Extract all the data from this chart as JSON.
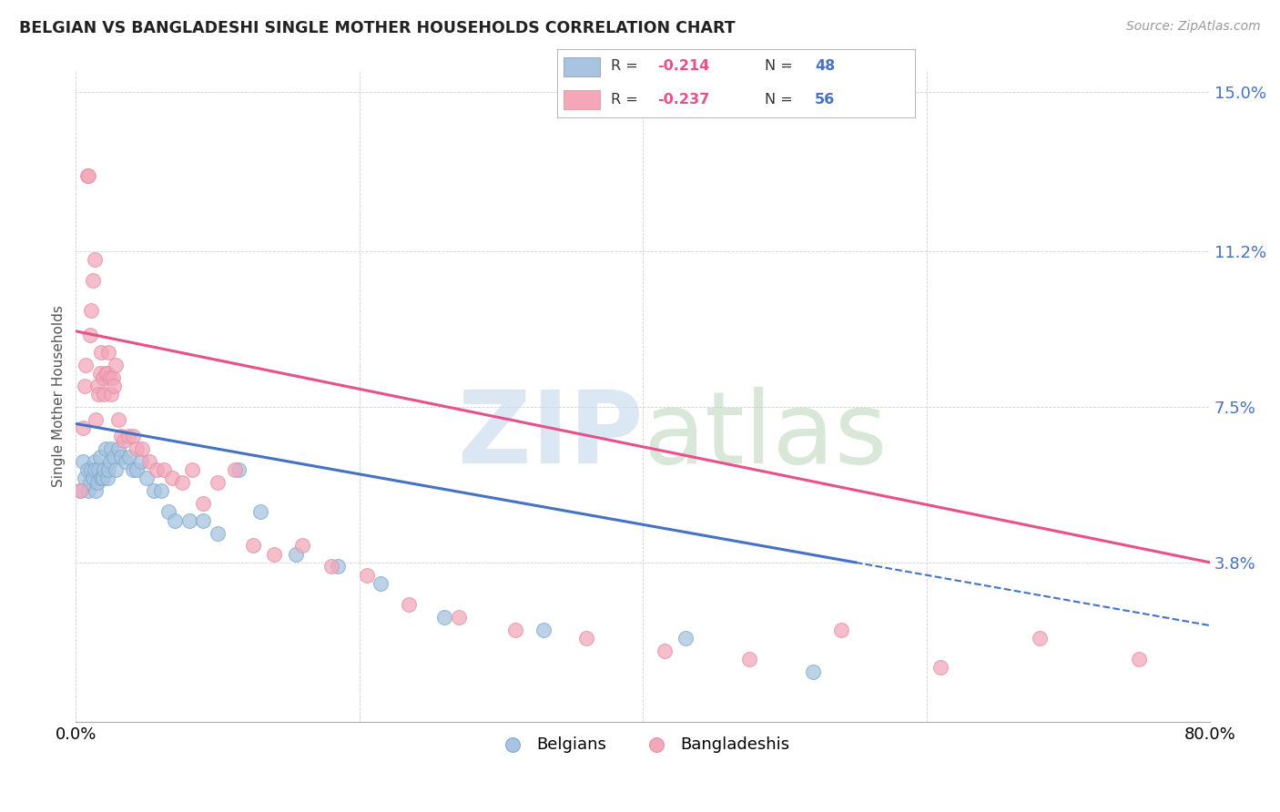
{
  "title": "BELGIAN VS BANGLADESHI SINGLE MOTHER HOUSEHOLDS CORRELATION CHART",
  "source": "Source: ZipAtlas.com",
  "ylabel": "Single Mother Households",
  "xlim": [
    0.0,
    0.8
  ],
  "ylim": [
    0.0,
    0.155
  ],
  "xticks": [
    0.0,
    0.2,
    0.4,
    0.6,
    0.8
  ],
  "xticklabels": [
    "0.0%",
    "",
    "",
    "",
    "80.0%"
  ],
  "ytick_positions": [
    0.038,
    0.075,
    0.112,
    0.15
  ],
  "ytick_labels": [
    "3.8%",
    "7.5%",
    "11.2%",
    "15.0%"
  ],
  "belgian_color": "#a8c4e0",
  "bangladeshi_color": "#f4a7b9",
  "line_blue": "#4472c4",
  "line_pink": "#e8508a",
  "belgian_R": -0.214,
  "belgian_N": 48,
  "bangladeshi_R": -0.237,
  "bangladeshi_N": 56,
  "bel_line_x0": 0.0,
  "bel_line_y0": 0.071,
  "bel_line_x1": 0.55,
  "bel_line_y1": 0.038,
  "ban_line_x0": 0.0,
  "ban_line_y0": 0.093,
  "ban_line_x1": 0.8,
  "ban_line_y1": 0.038,
  "belgians_x": [
    0.003,
    0.005,
    0.006,
    0.008,
    0.009,
    0.01,
    0.011,
    0.012,
    0.013,
    0.013,
    0.014,
    0.015,
    0.016,
    0.017,
    0.018,
    0.019,
    0.02,
    0.021,
    0.022,
    0.023,
    0.024,
    0.025,
    0.027,
    0.028,
    0.03,
    0.032,
    0.035,
    0.038,
    0.04,
    0.043,
    0.046,
    0.05,
    0.055,
    0.06,
    0.065,
    0.07,
    0.08,
    0.09,
    0.1,
    0.115,
    0.13,
    0.155,
    0.185,
    0.215,
    0.26,
    0.33,
    0.43,
    0.52
  ],
  "belgians_y": [
    0.055,
    0.062,
    0.058,
    0.06,
    0.055,
    0.057,
    0.06,
    0.058,
    0.062,
    0.06,
    0.055,
    0.057,
    0.06,
    0.063,
    0.058,
    0.058,
    0.06,
    0.065,
    0.058,
    0.06,
    0.062,
    0.065,
    0.063,
    0.06,
    0.065,
    0.063,
    0.062,
    0.063,
    0.06,
    0.06,
    0.062,
    0.058,
    0.055,
    0.055,
    0.05,
    0.048,
    0.048,
    0.048,
    0.045,
    0.06,
    0.05,
    0.04,
    0.037,
    0.033,
    0.025,
    0.022,
    0.02,
    0.012
  ],
  "bangladeshis_x": [
    0.003,
    0.005,
    0.006,
    0.007,
    0.008,
    0.009,
    0.01,
    0.011,
    0.012,
    0.013,
    0.014,
    0.015,
    0.016,
    0.017,
    0.018,
    0.019,
    0.02,
    0.021,
    0.022,
    0.023,
    0.024,
    0.025,
    0.026,
    0.027,
    0.028,
    0.03,
    0.032,
    0.034,
    0.037,
    0.04,
    0.043,
    0.047,
    0.052,
    0.057,
    0.062,
    0.068,
    0.075,
    0.082,
    0.09,
    0.1,
    0.112,
    0.125,
    0.14,
    0.16,
    0.18,
    0.205,
    0.235,
    0.27,
    0.31,
    0.36,
    0.415,
    0.475,
    0.54,
    0.61,
    0.68,
    0.75
  ],
  "bangladeshis_y": [
    0.055,
    0.07,
    0.08,
    0.085,
    0.13,
    0.13,
    0.092,
    0.098,
    0.105,
    0.11,
    0.072,
    0.08,
    0.078,
    0.083,
    0.088,
    0.082,
    0.078,
    0.083,
    0.083,
    0.088,
    0.082,
    0.078,
    0.082,
    0.08,
    0.085,
    0.072,
    0.068,
    0.067,
    0.068,
    0.068,
    0.065,
    0.065,
    0.062,
    0.06,
    0.06,
    0.058,
    0.057,
    0.06,
    0.052,
    0.057,
    0.06,
    0.042,
    0.04,
    0.042,
    0.037,
    0.035,
    0.028,
    0.025,
    0.022,
    0.02,
    0.017,
    0.015,
    0.022,
    0.013,
    0.02,
    0.015
  ]
}
